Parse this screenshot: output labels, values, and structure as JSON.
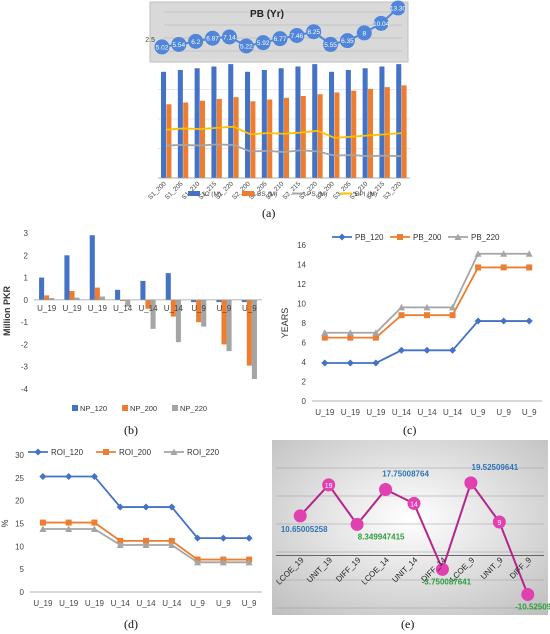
{
  "panel_labels": {
    "a": "(a)",
    "b": "(b)",
    "c": "(c)",
    "d": "(d)",
    "e": "(e)"
  },
  "colors": {
    "blue": "#4472c4",
    "orange": "#ed7d31",
    "gray": "#a5a5a5",
    "yellow": "#ffc000",
    "pb_blue": "#4f86d9",
    "dark_blue": "#4472c4",
    "orange_line": "#e08a2a",
    "magenta": "#b6248f",
    "pink_dot": "#e040b0",
    "green": "#2e9e3e",
    "dblue_lbl": "#2e75b6"
  },
  "chart_data": [
    {
      "id": "a",
      "type": "bar",
      "title": "PB (Yr)",
      "categories": [
        "S1_200",
        "S1_205",
        "S1_210",
        "S1_215",
        "S1_220",
        "S2_200",
        "S2_205",
        "S2_210",
        "S2_215",
        "S2_220",
        "S3_200",
        "S3_205",
        "S3_210",
        "S3_215",
        "S3_220"
      ],
      "series": [
        {
          "name": "IC (M)",
          "kind": "bar",
          "color": "#4472c4",
          "values": [
            1.8,
            1.83,
            1.86,
            1.89,
            1.93,
            1.8,
            1.83,
            1.86,
            1.89,
            1.93,
            1.8,
            1.83,
            1.86,
            1.89,
            1.93
          ]
        },
        {
          "name": "BS (M)",
          "kind": "bar",
          "color": "#ed7d31",
          "values": [
            1.25,
            1.28,
            1.31,
            1.34,
            1.37,
            1.3,
            1.33,
            1.36,
            1.39,
            1.42,
            1.45,
            1.48,
            1.51,
            1.54,
            1.57
          ]
        },
        {
          "name": "PS (M)",
          "kind": "line",
          "color": "#a5a5a5",
          "values": [
            0.55,
            0.56,
            0.55,
            0.57,
            0.56,
            0.45,
            0.46,
            0.44,
            0.47,
            0.45,
            0.38,
            0.39,
            0.37,
            0.38,
            0.37
          ]
        },
        {
          "name": "BPI (M)",
          "kind": "line",
          "color": "#ffc000",
          "values": [
            0.82,
            0.84,
            0.83,
            0.85,
            0.87,
            0.74,
            0.76,
            0.75,
            0.77,
            0.8,
            0.68,
            0.7,
            0.72,
            0.74,
            0.76
          ]
        }
      ],
      "ylim": [
        0,
        2
      ],
      "yticks": [
        "0",
        "0.5",
        "1",
        "1.5",
        "2"
      ],
      "inset": {
        "title": "PB (Yr)",
        "values": [
          5.02,
          5.54,
          6.2,
          6.87,
          7.14,
          5.22,
          5.92,
          6.77,
          7.46,
          8.25,
          5.55,
          6.35,
          8,
          10.04,
          13.3
        ],
        "labels": [
          "5.02",
          "5.54",
          "6.2",
          "6.87",
          "7.14",
          "5.22",
          "5.92",
          "6.77",
          "7.46",
          "8.25",
          "5.55",
          "6.35",
          "8",
          "10.04",
          "13.30"
        ],
        "ytick": "2.5"
      }
    },
    {
      "id": "b",
      "type": "bar",
      "ylabel": "Million PKR",
      "categories": [
        "U_19",
        "U_19",
        "U_19",
        "U_14",
        "U_14",
        "U_14",
        "U_9",
        "U_9",
        "U_9"
      ],
      "series": [
        {
          "name": "NP_120",
          "color": "#4472c4",
          "values": [
            1.0,
            2.0,
            2.9,
            0.45,
            0.85,
            1.2,
            -0.1,
            -0.1,
            -0.1
          ]
        },
        {
          "name": "NP_200",
          "color": "#ed7d31",
          "values": [
            0.2,
            0.4,
            0.55,
            -0.05,
            -0.4,
            -0.75,
            -1.0,
            -2.0,
            -2.95
          ]
        },
        {
          "name": "NP_220",
          "color": "#a5a5a5",
          "values": [
            0.08,
            0.1,
            0.15,
            -0.3,
            -1.3,
            -1.9,
            -1.2,
            -2.3,
            -3.55
          ]
        }
      ],
      "ylim": [
        -4,
        3
      ],
      "yticks": [
        "-4",
        "-3",
        "-2",
        "-1",
        "0",
        "1",
        "2",
        "3"
      ]
    },
    {
      "id": "c",
      "type": "line",
      "ylabel": "YEARS",
      "categories": [
        "U_19",
        "U_19",
        "U_19",
        "U_14",
        "U_14",
        "U_14",
        "U_9",
        "U_9",
        "U_9"
      ],
      "series": [
        {
          "name": "PB_120",
          "color": "#4472c4",
          "marker": "diamond",
          "values": [
            3.9,
            3.9,
            3.9,
            5.2,
            5.2,
            5.2,
            8.2,
            8.2,
            8.2
          ]
        },
        {
          "name": "PB_200",
          "color": "#ed7d31",
          "marker": "square",
          "values": [
            6.5,
            6.5,
            6.5,
            8.8,
            8.8,
            8.8,
            13.7,
            13.7,
            13.7
          ]
        },
        {
          "name": "PB_220",
          "color": "#a5a5a5",
          "marker": "triangle",
          "values": [
            7.0,
            7.0,
            7.0,
            9.6,
            9.6,
            9.6,
            15.1,
            15.1,
            15.1
          ]
        }
      ],
      "ylim": [
        0,
        16
      ],
      "yticks": [
        "0",
        "2",
        "4",
        "6",
        "8",
        "10",
        "12",
        "14",
        "16"
      ]
    },
    {
      "id": "d",
      "type": "line",
      "ylabel": "%",
      "categories": [
        "U_19",
        "U_19",
        "U_19",
        "U_14",
        "U_14",
        "U_14",
        "U_9",
        "U_9",
        "U_9"
      ],
      "series": [
        {
          "name": "ROI_120",
          "color": "#4472c4",
          "marker": "diamond",
          "values": [
            25.3,
            25.3,
            25.3,
            18.6,
            18.6,
            18.6,
            11.8,
            11.8,
            11.8
          ]
        },
        {
          "name": "ROI_200",
          "color": "#ed7d31",
          "marker": "square",
          "values": [
            15.2,
            15.2,
            15.2,
            11.2,
            11.2,
            11.2,
            7.1,
            7.1,
            7.1
          ]
        },
        {
          "name": "ROI_220",
          "color": "#a5a5a5",
          "marker": "triangle",
          "values": [
            13.8,
            13.8,
            13.8,
            10.3,
            10.3,
            10.3,
            6.5,
            6.5,
            6.5
          ]
        }
      ],
      "ylim": [
        0,
        30
      ],
      "yticks": [
        "0",
        "5",
        "10",
        "15",
        "20",
        "25",
        "30"
      ]
    },
    {
      "id": "e",
      "type": "line",
      "categories": [
        "LCOE_19",
        "UNIT_19",
        "DIFF_19",
        "LCOE_14",
        "UNIT_14",
        "DIFF_14",
        "LCOE_9",
        "UNIT_9",
        "DIFF_9"
      ],
      "values": [
        10.65005258,
        19,
        8.349947415,
        17.75008764,
        14,
        -3.750087641,
        19.52509641,
        9,
        -10.52509641
      ],
      "marker_labels": [
        "",
        "19",
        "",
        "",
        "14",
        "",
        "",
        "9",
        ""
      ],
      "data_labels": [
        "10.65005258",
        "",
        "8.349947415",
        "17.75008764",
        "",
        "-3.750087641",
        "19.52509641",
        "",
        "-10.52509641"
      ],
      "ylim": [
        -12,
        30
      ]
    }
  ]
}
